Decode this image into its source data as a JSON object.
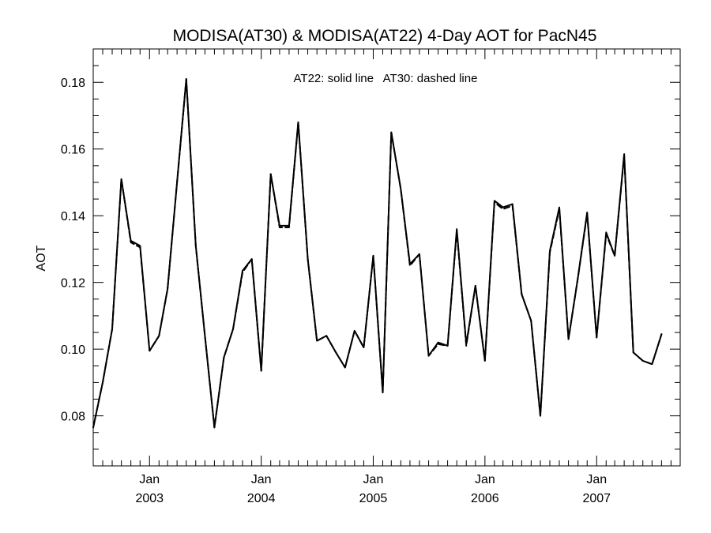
{
  "chart_data": {
    "type": "line",
    "title": "MODISA(AT30) & MODISA(AT22) 4-Day AOT for PacN45",
    "annotation": "AT22: solid line   AT30: dashed line",
    "ylabel": "AOT",
    "xlabel": "",
    "ylim": [
      0.065,
      0.19
    ],
    "xlim": [
      "2002-07-01",
      "2007-10-01"
    ],
    "y_ticks": [
      {
        "value": 0.08,
        "label": "0.08"
      },
      {
        "value": 0.1,
        "label": "0.10"
      },
      {
        "value": 0.12,
        "label": "0.12"
      },
      {
        "value": 0.14,
        "label": "0.14"
      },
      {
        "value": 0.16,
        "label": "0.16"
      },
      {
        "value": 0.18,
        "label": "0.18"
      }
    ],
    "x_ticks": [
      {
        "date": "2003-01-01",
        "month": "Jan",
        "year": "2003"
      },
      {
        "date": "2004-01-01",
        "month": "Jan",
        "year": "2004"
      },
      {
        "date": "2005-01-01",
        "month": "Jan",
        "year": "2005"
      },
      {
        "date": "2006-01-01",
        "month": "Jan",
        "year": "2006"
      },
      {
        "date": "2007-01-01",
        "month": "Jan",
        "year": "2007"
      }
    ],
    "grid": false,
    "series": [
      {
        "name": "AT22",
        "style": "solid",
        "color": "#000000",
        "points": [
          [
            "2002-07-01",
            0.0765
          ],
          [
            "2002-08-01",
            0.09
          ],
          [
            "2002-09-01",
            0.106
          ],
          [
            "2002-10-01",
            0.151
          ],
          [
            "2002-11-01",
            0.1325
          ],
          [
            "2002-12-01",
            0.131
          ],
          [
            "2003-01-01",
            0.0995
          ],
          [
            "2003-02-01",
            0.104
          ],
          [
            "2003-03-01",
            0.118
          ],
          [
            "2003-04-01",
            0.15
          ],
          [
            "2003-05-01",
            0.181
          ],
          [
            "2003-06-01",
            0.131
          ],
          [
            "2003-07-01",
            0.104
          ],
          [
            "2003-08-01",
            0.0765
          ],
          [
            "2003-09-01",
            0.0975
          ],
          [
            "2003-10-01",
            0.106
          ],
          [
            "2003-11-01",
            0.1235
          ],
          [
            "2003-12-01",
            0.127
          ],
          [
            "2004-01-01",
            0.0935
          ],
          [
            "2004-02-01",
            0.1525
          ],
          [
            "2004-03-01",
            0.137
          ],
          [
            "2004-04-01",
            0.137
          ],
          [
            "2004-05-01",
            0.168
          ],
          [
            "2004-06-01",
            0.127
          ],
          [
            "2004-07-01",
            0.1025
          ],
          [
            "2004-08-01",
            0.104
          ],
          [
            "2004-09-01",
            0.099
          ],
          [
            "2004-10-01",
            0.0945
          ],
          [
            "2004-11-01",
            0.1055
          ],
          [
            "2004-12-01",
            0.1005
          ],
          [
            "2005-01-01",
            0.128
          ],
          [
            "2005-02-01",
            0.087
          ],
          [
            "2005-03-01",
            0.165
          ],
          [
            "2005-04-01",
            0.148
          ],
          [
            "2005-05-01",
            0.1255
          ],
          [
            "2005-06-01",
            0.1285
          ],
          [
            "2005-07-01",
            0.098
          ],
          [
            "2005-08-01",
            0.102
          ],
          [
            "2005-09-01",
            0.101
          ],
          [
            "2005-10-01",
            0.136
          ],
          [
            "2005-11-01",
            0.1015
          ],
          [
            "2005-12-01",
            0.119
          ],
          [
            "2006-01-01",
            0.0965
          ],
          [
            "2006-02-01",
            0.1445
          ],
          [
            "2006-03-01",
            0.1425
          ],
          [
            "2006-04-01",
            0.1435
          ],
          [
            "2006-05-01",
            0.1165
          ],
          [
            "2006-06-01",
            0.1085
          ],
          [
            "2006-07-01",
            0.08
          ],
          [
            "2006-08-01",
            0.1295
          ],
          [
            "2006-09-01",
            0.1425
          ],
          [
            "2006-10-01",
            0.103
          ],
          [
            "2006-11-01",
            0.1215
          ],
          [
            "2006-12-01",
            0.141
          ],
          [
            "2007-01-01",
            0.1035
          ],
          [
            "2007-02-01",
            0.135
          ],
          [
            "2007-03-01",
            0.128
          ],
          [
            "2007-04-01",
            0.1585
          ],
          [
            "2007-05-01",
            0.099
          ],
          [
            "2007-06-01",
            0.0965
          ],
          [
            "2007-07-01",
            0.0955
          ],
          [
            "2007-08-01",
            0.1045
          ]
        ]
      },
      {
        "name": "AT30",
        "style": "dashed",
        "color": "#000000",
        "points": [
          [
            "2002-07-01",
            0.0765
          ],
          [
            "2002-08-01",
            0.09
          ],
          [
            "2002-09-01",
            0.106
          ],
          [
            "2002-10-01",
            0.151
          ],
          [
            "2002-11-01",
            0.132
          ],
          [
            "2002-12-01",
            0.1305
          ],
          [
            "2003-01-01",
            0.0995
          ],
          [
            "2003-02-01",
            0.104
          ],
          [
            "2003-03-01",
            0.118
          ],
          [
            "2003-04-01",
            0.15
          ],
          [
            "2003-05-01",
            0.181
          ],
          [
            "2003-06-01",
            0.131
          ],
          [
            "2003-07-01",
            0.104
          ],
          [
            "2003-08-01",
            0.0765
          ],
          [
            "2003-09-01",
            0.0975
          ],
          [
            "2003-10-01",
            0.106
          ],
          [
            "2003-11-01",
            0.123
          ],
          [
            "2003-12-01",
            0.127
          ],
          [
            "2004-01-01",
            0.0935
          ],
          [
            "2004-02-01",
            0.1525
          ],
          [
            "2004-03-01",
            0.1365
          ],
          [
            "2004-04-01",
            0.1365
          ],
          [
            "2004-05-01",
            0.168
          ],
          [
            "2004-06-01",
            0.127
          ],
          [
            "2004-07-01",
            0.1025
          ],
          [
            "2004-08-01",
            0.104
          ],
          [
            "2004-09-01",
            0.099
          ],
          [
            "2004-10-01",
            0.0945
          ],
          [
            "2004-11-01",
            0.1055
          ],
          [
            "2004-12-01",
            0.1005
          ],
          [
            "2005-01-01",
            0.128
          ],
          [
            "2005-02-01",
            0.087
          ],
          [
            "2005-03-01",
            0.165
          ],
          [
            "2005-04-01",
            0.148
          ],
          [
            "2005-05-01",
            0.125
          ],
          [
            "2005-06-01",
            0.1285
          ],
          [
            "2005-07-01",
            0.098
          ],
          [
            "2005-08-01",
            0.1015
          ],
          [
            "2005-09-01",
            0.101
          ],
          [
            "2005-10-01",
            0.1355
          ],
          [
            "2005-11-01",
            0.101
          ],
          [
            "2005-12-01",
            0.119
          ],
          [
            "2006-01-01",
            0.0965
          ],
          [
            "2006-02-01",
            0.144
          ],
          [
            "2006-03-01",
            0.142
          ],
          [
            "2006-04-01",
            0.143
          ],
          [
            "2006-05-01",
            0.1165
          ],
          [
            "2006-06-01",
            0.1085
          ],
          [
            "2006-07-01",
            0.08
          ],
          [
            "2006-08-01",
            0.129
          ],
          [
            "2006-09-01",
            0.142
          ],
          [
            "2006-10-01",
            0.103
          ],
          [
            "2006-11-01",
            0.1215
          ],
          [
            "2006-12-01",
            0.1405
          ],
          [
            "2007-01-01",
            0.1035
          ],
          [
            "2007-02-01",
            0.1345
          ],
          [
            "2007-03-01",
            0.128
          ],
          [
            "2007-04-01",
            0.158
          ],
          [
            "2007-05-01",
            0.099
          ],
          [
            "2007-06-01",
            0.0965
          ],
          [
            "2007-07-01",
            0.0955
          ],
          [
            "2007-08-01",
            0.1045
          ]
        ]
      }
    ]
  }
}
